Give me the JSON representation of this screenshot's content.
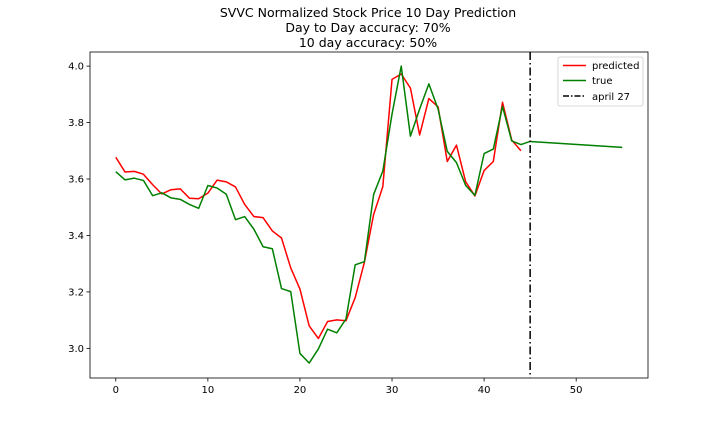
{
  "chart_data": {
    "type": "line",
    "title_lines": [
      "SVVC Normalized Stock Price 10 Day Prediction",
      "Day to Day accuracy: 70%",
      "10 day accuracy: 50%"
    ],
    "xlabel": "",
    "ylabel": "",
    "xlim": [
      -2.8,
      57.8
    ],
    "ylim": [
      2.895,
      4.05
    ],
    "xticks": [
      0,
      10,
      20,
      30,
      40,
      50
    ],
    "yticks": [
      3.0,
      3.2,
      3.4,
      3.6,
      3.8,
      4.0
    ],
    "ytick_labels": [
      "3.0",
      "3.2",
      "3.4",
      "3.6",
      "3.8",
      "4.0"
    ],
    "legend_position": "upper right",
    "series": [
      {
        "name": "predicted",
        "color": "#ff0000",
        "x": [
          0,
          1,
          2,
          3,
          4,
          5,
          6,
          7,
          8,
          9,
          10,
          11,
          12,
          13,
          14,
          15,
          16,
          17,
          18,
          19,
          20,
          21,
          22,
          23,
          24,
          25,
          26,
          27,
          28,
          29,
          30,
          31,
          32,
          33,
          34,
          35,
          36,
          37,
          38,
          39,
          40,
          41,
          42,
          43,
          44
        ],
        "y": [
          3.677,
          3.625,
          3.627,
          3.617,
          3.58,
          3.547,
          3.562,
          3.565,
          3.532,
          3.53,
          3.55,
          3.596,
          3.59,
          3.572,
          3.51,
          3.467,
          3.463,
          3.416,
          3.391,
          3.285,
          3.21,
          3.08,
          3.035,
          3.095,
          3.101,
          3.098,
          3.18,
          3.305,
          3.474,
          3.573,
          3.953,
          3.972,
          3.922,
          3.756,
          3.885,
          3.856,
          3.662,
          3.72,
          3.59,
          3.54,
          3.63,
          3.662,
          3.872,
          3.738,
          3.7
        ]
      },
      {
        "name": "true",
        "color": "#008000",
        "x": [
          0,
          1,
          2,
          3,
          4,
          5,
          6,
          7,
          8,
          9,
          10,
          11,
          12,
          13,
          14,
          15,
          16,
          17,
          18,
          19,
          20,
          21,
          22,
          23,
          24,
          25,
          26,
          27,
          28,
          29,
          30,
          31,
          32,
          33,
          34,
          35,
          36,
          37,
          38,
          39,
          40,
          41,
          42,
          43,
          44,
          45,
          55
        ],
        "y": [
          3.626,
          3.597,
          3.603,
          3.595,
          3.541,
          3.551,
          3.533,
          3.528,
          3.51,
          3.496,
          3.577,
          3.568,
          3.546,
          3.456,
          3.467,
          3.422,
          3.36,
          3.353,
          3.212,
          3.201,
          2.982,
          2.948,
          2.998,
          3.068,
          3.055,
          3.104,
          3.296,
          3.307,
          3.545,
          3.628,
          3.83,
          4.0,
          3.752,
          3.848,
          3.937,
          3.848,
          3.698,
          3.658,
          3.577,
          3.542,
          3.69,
          3.706,
          3.857,
          3.735,
          3.722,
          3.733,
          3.712
        ]
      }
    ],
    "vline": {
      "name": "april 27",
      "x": 45,
      "color": "#000000",
      "style": "dashdot"
    }
  }
}
